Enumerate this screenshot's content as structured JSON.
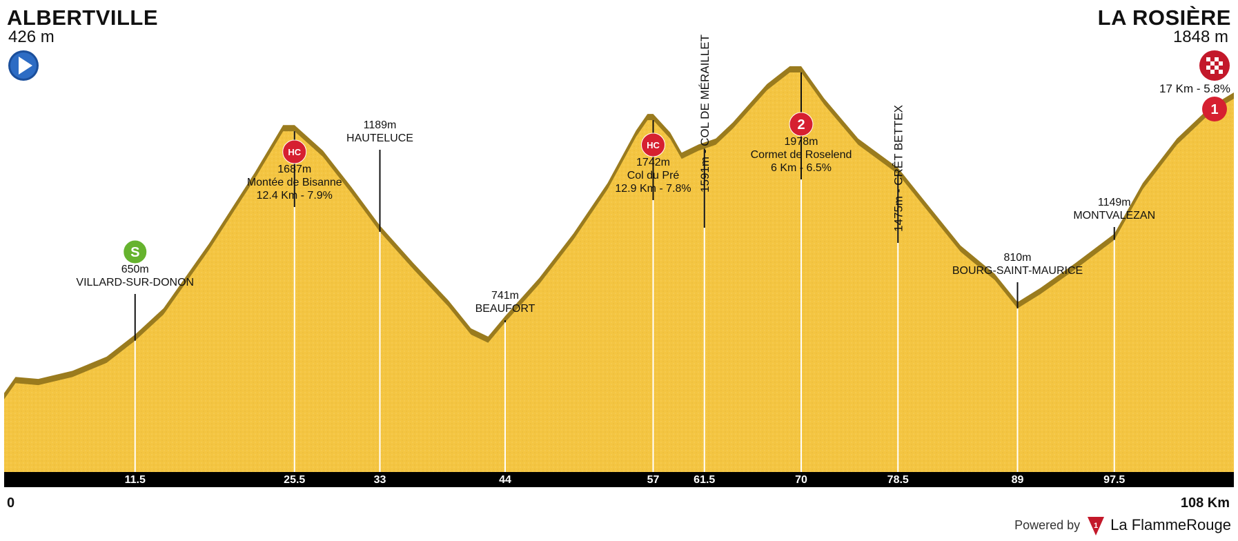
{
  "start": {
    "name": "ALBERTVILLE",
    "altitude": "426 m"
  },
  "finish": {
    "name": "LA ROSIÈRE",
    "altitude": "1848 m",
    "climb_label": "17 Km - 5.8%",
    "climb_category": "1"
  },
  "distance": {
    "start_label": "0",
    "end_label": "108 Km",
    "total_km": 108
  },
  "footer": {
    "powered_by": "Powered by",
    "brand": "La FlammeRouge"
  },
  "colors": {
    "terrain": "#F4C542",
    "shade": "#9A7B1E",
    "axis": "#000000",
    "red_badge": "#D62030",
    "green_badge": "#66B32E"
  },
  "chart_data": {
    "type": "area",
    "xlim": [
      0,
      108
    ],
    "ylim": [
      0,
      2200
    ],
    "profile": [
      [
        0,
        360
      ],
      [
        1,
        440
      ],
      [
        3,
        430
      ],
      [
        6,
        470
      ],
      [
        9,
        540
      ],
      [
        11.5,
        650
      ],
      [
        14,
        780
      ],
      [
        18,
        1100
      ],
      [
        22,
        1450
      ],
      [
        24.5,
        1687
      ],
      [
        25.5,
        1687
      ],
      [
        28,
        1560
      ],
      [
        30.5,
        1380
      ],
      [
        33,
        1189
      ],
      [
        36,
        1000
      ],
      [
        39,
        820
      ],
      [
        41,
        680
      ],
      [
        42.5,
        640
      ],
      [
        44,
        741
      ],
      [
        47,
        930
      ],
      [
        50,
        1150
      ],
      [
        53,
        1400
      ],
      [
        55.5,
        1660
      ],
      [
        56.5,
        1742
      ],
      [
        57,
        1742
      ],
      [
        58.5,
        1650
      ],
      [
        59.5,
        1550
      ],
      [
        61,
        1591
      ],
      [
        62.5,
        1620
      ],
      [
        64,
        1700
      ],
      [
        67,
        1890
      ],
      [
        69,
        1978
      ],
      [
        70,
        1978
      ],
      [
        72,
        1820
      ],
      [
        75,
        1620
      ],
      [
        78.5,
        1475
      ],
      [
        81,
        1300
      ],
      [
        84,
        1090
      ],
      [
        87,
        950
      ],
      [
        89,
        810
      ],
      [
        91,
        880
      ],
      [
        94,
        1000
      ],
      [
        97.5,
        1149
      ],
      [
        100,
        1400
      ],
      [
        103,
        1620
      ],
      [
        106,
        1780
      ],
      [
        108,
        1848
      ]
    ],
    "markers": [
      {
        "km": 11.5,
        "tick": "11.5",
        "lines": [
          "650m",
          "VILLARD-SUR-DONON"
        ],
        "badge": "S",
        "badge_color": "green"
      },
      {
        "km": 25.5,
        "tick": "25.5",
        "lines": [
          "1687m",
          "Montée de Bisanne",
          "12.4 Km - 7.9%"
        ],
        "badge": "HC",
        "badge_color": "red"
      },
      {
        "km": 33,
        "tick": "33",
        "lines": [
          "1189m",
          "HAUTELUCE"
        ]
      },
      {
        "km": 44,
        "tick": "44",
        "lines": [
          "741m",
          "BEAUFORT"
        ]
      },
      {
        "km": 57,
        "tick": "57",
        "lines": [
          "1742m",
          "Col du Pré",
          "12.9 Km - 7.8%"
        ],
        "badge": "HC",
        "badge_color": "red"
      },
      {
        "km": 61.5,
        "tick": "61.5",
        "vertical": "1591m - COL DE MÉRAILLET"
      },
      {
        "km": 70,
        "tick": "70",
        "lines": [
          "1978m",
          "Cormet de Roselend",
          "6 Km - 6.5%"
        ],
        "badge": "2",
        "badge_color": "red"
      },
      {
        "km": 78.5,
        "tick": "78.5",
        "vertical": "1475m - CRÊT BETTEX"
      },
      {
        "km": 89,
        "tick": "89",
        "lines": [
          "810m",
          "BOURG-SAINT-MAURICE"
        ]
      },
      {
        "km": 97.5,
        "tick": "97.5",
        "lines": [
          "1149m",
          "MONTVALEZAN"
        ]
      }
    ]
  }
}
